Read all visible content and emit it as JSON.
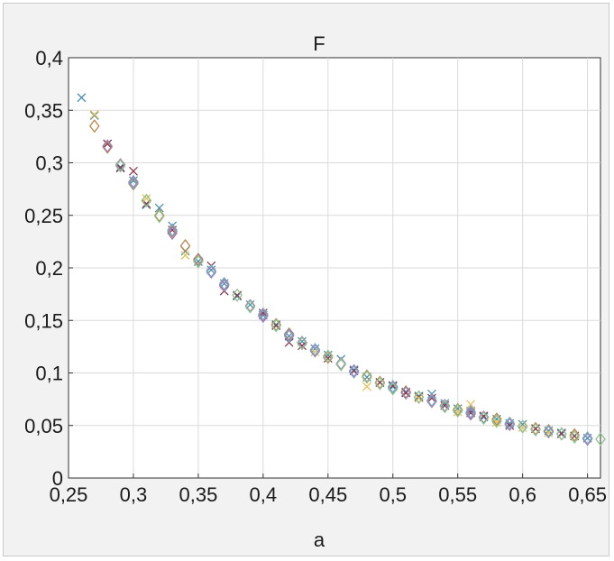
{
  "chart_data": {
    "type": "scatter",
    "title": "F",
    "xlabel": "a",
    "ylabel": "",
    "xlim": [
      0.25,
      0.66
    ],
    "ylim": [
      0,
      0.4
    ],
    "grid": true,
    "legend": "none",
    "x_ticks": [
      0.25,
      0.3,
      0.35,
      0.4,
      0.45,
      0.5,
      0.55,
      0.6,
      0.65
    ],
    "x_tick_labels": [
      "0,25",
      "0,3",
      "0,35",
      "0,4",
      "0,45",
      "0,5",
      "0,55",
      "0,6",
      "0,65"
    ],
    "y_ticks": [
      0,
      0.05,
      0.1,
      0.15,
      0.2,
      0.25,
      0.3,
      0.35,
      0.4
    ],
    "y_tick_labels": [
      "0",
      "0,05",
      "0,1",
      "0,15",
      "0,2",
      "0,25",
      "0,3",
      "0,35",
      "0,4"
    ],
    "series": [
      {
        "marker": "x",
        "color": "#4a8fb0",
        "points": [
          [
            0.26,
            0.362
          ],
          [
            0.27,
            0.345
          ],
          [
            0.28,
            0.318
          ],
          [
            0.29,
            0.296
          ],
          [
            0.3,
            0.283
          ],
          [
            0.31,
            0.26
          ],
          [
            0.32,
            0.257
          ],
          [
            0.33,
            0.24
          ],
          [
            0.34,
            0.216
          ],
          [
            0.35,
            0.206
          ],
          [
            0.36,
            0.198
          ],
          [
            0.37,
            0.185
          ],
          [
            0.38,
            0.173
          ],
          [
            0.39,
            0.165
          ],
          [
            0.4,
            0.155
          ],
          [
            0.41,
            0.146
          ],
          [
            0.42,
            0.135
          ],
          [
            0.43,
            0.13
          ],
          [
            0.44,
            0.123
          ],
          [
            0.45,
            0.117
          ],
          [
            0.46,
            0.113
          ],
          [
            0.47,
            0.103
          ],
          [
            0.48,
            0.096
          ],
          [
            0.49,
            0.091
          ],
          [
            0.5,
            0.087
          ],
          [
            0.51,
            0.082
          ],
          [
            0.52,
            0.078
          ],
          [
            0.53,
            0.08
          ],
          [
            0.54,
            0.071
          ],
          [
            0.55,
            0.066
          ],
          [
            0.56,
            0.064
          ],
          [
            0.57,
            0.058
          ],
          [
            0.58,
            0.056
          ],
          [
            0.59,
            0.052
          ],
          [
            0.6,
            0.051
          ],
          [
            0.61,
            0.047
          ],
          [
            0.62,
            0.045
          ],
          [
            0.63,
            0.043
          ],
          [
            0.64,
            0.04
          ],
          [
            0.65,
            0.038
          ]
        ]
      },
      {
        "marker": "x",
        "color": "#8a3b52",
        "points": [
          [
            0.28,
            0.318
          ],
          [
            0.29,
            0.295
          ],
          [
            0.3,
            0.292
          ],
          [
            0.31,
            0.261
          ],
          [
            0.33,
            0.236
          ],
          [
            0.36,
            0.202
          ],
          [
            0.37,
            0.178
          ],
          [
            0.38,
            0.174
          ],
          [
            0.4,
            0.157
          ],
          [
            0.41,
            0.145
          ],
          [
            0.42,
            0.129
          ],
          [
            0.43,
            0.126
          ],
          [
            0.45,
            0.114
          ],
          [
            0.47,
            0.102
          ],
          [
            0.49,
            0.091
          ],
          [
            0.5,
            0.088
          ],
          [
            0.51,
            0.081
          ],
          [
            0.52,
            0.077
          ],
          [
            0.53,
            0.076
          ],
          [
            0.54,
            0.069
          ],
          [
            0.56,
            0.062
          ],
          [
            0.57,
            0.059
          ],
          [
            0.59,
            0.05
          ],
          [
            0.61,
            0.047
          ],
          [
            0.63,
            0.042
          ],
          [
            0.64,
            0.04
          ]
        ]
      },
      {
        "marker": "x",
        "color": "#e8c25a",
        "points": [
          [
            0.27,
            0.346
          ],
          [
            0.31,
            0.266
          ],
          [
            0.34,
            0.212
          ],
          [
            0.44,
            0.12
          ],
          [
            0.48,
            0.087
          ],
          [
            0.52,
            0.076
          ],
          [
            0.55,
            0.063
          ],
          [
            0.56,
            0.07
          ],
          [
            0.58,
            0.053
          ],
          [
            0.6,
            0.048
          ],
          [
            0.62,
            0.043
          ]
        ]
      },
      {
        "marker": "diamond",
        "color": "#b8864a",
        "points": [
          [
            0.27,
            0.335
          ],
          [
            0.28,
            0.315
          ],
          [
            0.3,
            0.28
          ],
          [
            0.31,
            0.264
          ],
          [
            0.32,
            0.25
          ],
          [
            0.33,
            0.235
          ],
          [
            0.34,
            0.221
          ],
          [
            0.35,
            0.208
          ],
          [
            0.37,
            0.184
          ],
          [
            0.4,
            0.155
          ],
          [
            0.41,
            0.146
          ],
          [
            0.42,
            0.137
          ],
          [
            0.44,
            0.122
          ],
          [
            0.45,
            0.115
          ],
          [
            0.48,
            0.097
          ],
          [
            0.49,
            0.091
          ],
          [
            0.51,
            0.082
          ],
          [
            0.52,
            0.077
          ],
          [
            0.53,
            0.073
          ],
          [
            0.55,
            0.065
          ],
          [
            0.56,
            0.062
          ],
          [
            0.58,
            0.056
          ],
          [
            0.59,
            0.052
          ],
          [
            0.61,
            0.047
          ],
          [
            0.62,
            0.045
          ],
          [
            0.64,
            0.041
          ],
          [
            0.65,
            0.038
          ]
        ]
      },
      {
        "marker": "diamond",
        "color": "#a07ab0",
        "points": [
          [
            0.28,
            0.316
          ],
          [
            0.29,
            0.298
          ],
          [
            0.3,
            0.282
          ],
          [
            0.33,
            0.233
          ],
          [
            0.35,
            0.207
          ],
          [
            0.36,
            0.196
          ],
          [
            0.37,
            0.183
          ],
          [
            0.39,
            0.164
          ],
          [
            0.4,
            0.154
          ],
          [
            0.42,
            0.136
          ],
          [
            0.43,
            0.129
          ],
          [
            0.44,
            0.121
          ],
          [
            0.46,
            0.109
          ],
          [
            0.47,
            0.102
          ],
          [
            0.5,
            0.086
          ],
          [
            0.51,
            0.081
          ],
          [
            0.53,
            0.073
          ],
          [
            0.54,
            0.069
          ],
          [
            0.56,
            0.061
          ],
          [
            0.57,
            0.058
          ],
          [
            0.59,
            0.051
          ],
          [
            0.6,
            0.049
          ],
          [
            0.62,
            0.044
          ],
          [
            0.63,
            0.042
          ],
          [
            0.65,
            0.037
          ]
        ]
      },
      {
        "marker": "diamond",
        "color": "#8fc38f",
        "points": [
          [
            0.29,
            0.297
          ],
          [
            0.31,
            0.264
          ],
          [
            0.32,
            0.249
          ],
          [
            0.35,
            0.206
          ],
          [
            0.38,
            0.174
          ],
          [
            0.39,
            0.163
          ],
          [
            0.41,
            0.145
          ],
          [
            0.43,
            0.128
          ],
          [
            0.45,
            0.116
          ],
          [
            0.46,
            0.108
          ],
          [
            0.48,
            0.096
          ],
          [
            0.49,
            0.09
          ],
          [
            0.5,
            0.085
          ],
          [
            0.52,
            0.077
          ],
          [
            0.54,
            0.068
          ],
          [
            0.55,
            0.064
          ],
          [
            0.57,
            0.057
          ],
          [
            0.58,
            0.054
          ],
          [
            0.6,
            0.049
          ],
          [
            0.61,
            0.046
          ],
          [
            0.63,
            0.042
          ],
          [
            0.64,
            0.039
          ],
          [
            0.66,
            0.037
          ]
        ]
      },
      {
        "marker": "diamond",
        "color": "#7aa3c8",
        "points": [
          [
            0.3,
            0.281
          ],
          [
            0.33,
            0.236
          ],
          [
            0.36,
            0.197
          ],
          [
            0.37,
            0.185
          ],
          [
            0.4,
            0.156
          ],
          [
            0.42,
            0.135
          ],
          [
            0.44,
            0.122
          ],
          [
            0.47,
            0.101
          ],
          [
            0.5,
            0.087
          ],
          [
            0.53,
            0.074
          ],
          [
            0.56,
            0.063
          ],
          [
            0.59,
            0.052
          ],
          [
            0.62,
            0.044
          ],
          [
            0.65,
            0.038
          ]
        ]
      }
    ]
  }
}
